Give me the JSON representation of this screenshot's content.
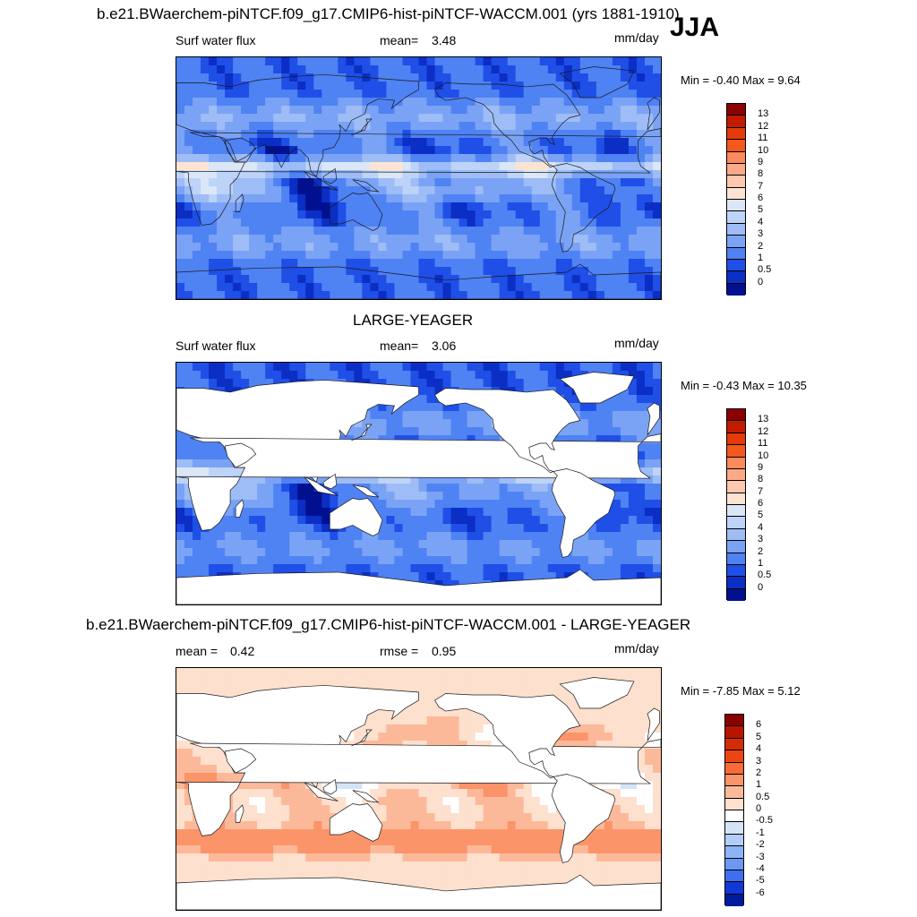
{
  "season": "JJA",
  "panels": [
    {
      "title": "b.e21.BWaerchem-piNTCF.f09_g17.CMIP6-hist-piNTCF-WACCM.001 (yrs 1881-1910)",
      "left_label": "Surf water flux",
      "stat_label": "mean=",
      "stat_value": "3.48",
      "units": "mm/day",
      "minmax": "Min =  -0.40 Max =   9.64",
      "field": "model",
      "colorbar": {
        "labels": [
          "13",
          "12",
          "11",
          "10",
          "9",
          "8",
          "7",
          "6",
          "5",
          "4",
          "3",
          "2",
          "1",
          "0.5",
          "0"
        ],
        "colors": [
          "#8b0000",
          "#c41b00",
          "#e33b0a",
          "#f5581c",
          "#fb8a5c",
          "#fca986",
          "#fdc8ad",
          "#fde4d2",
          "#dbe7f7",
          "#bdd3f7",
          "#9ebcf6",
          "#7ba3f5",
          "#4f82f3",
          "#1f4fe6",
          "#0b2ec4",
          "#00108f"
        ]
      }
    },
    {
      "title": "LARGE-YEAGER",
      "left_label": "Surf water flux",
      "stat_label": "mean=",
      "stat_value": "3.06",
      "units": "mm/day",
      "minmax": "Min =  -0.43 Max =  10.35",
      "field": "obs",
      "colorbar": {
        "labels": [
          "13",
          "12",
          "11",
          "10",
          "9",
          "8",
          "7",
          "6",
          "5",
          "4",
          "3",
          "2",
          "1",
          "0.5",
          "0"
        ],
        "colors": [
          "#8b0000",
          "#c41b00",
          "#e33b0a",
          "#f5581c",
          "#fb8a5c",
          "#fca986",
          "#fdc8ad",
          "#fde4d2",
          "#dbe7f7",
          "#bdd3f7",
          "#9ebcf6",
          "#7ba3f5",
          "#4f82f3",
          "#1f4fe6",
          "#0b2ec4",
          "#00108f"
        ]
      }
    },
    {
      "title": "b.e21.BWaerchem-piNTCF.f09_g17.CMIP6-hist-piNTCF-WACCM.001 - LARGE-YEAGER",
      "left_label": "mean =",
      "left_value": "0.42",
      "stat_label": "rmse =",
      "stat_value": "0.95",
      "units": "mm/day",
      "minmax": "Min =  -7.85 Max =   5.12",
      "field": "diff",
      "colorbar": {
        "labels": [
          "6",
          "5",
          "4",
          "3",
          "2",
          "1",
          "0.5",
          "0",
          "-0.5",
          "-1",
          "-2",
          "-3",
          "-4",
          "-5",
          "-6"
        ],
        "colors": [
          "#8b0000",
          "#b81500",
          "#d62c06",
          "#ec4514",
          "#f86a38",
          "#fb9469",
          "#fcb99a",
          "#fde0cd",
          "#ffffff",
          "#d5e3f7",
          "#b2cdf6",
          "#8eb4f5",
          "#6a98f3",
          "#3f6fee",
          "#1238d6",
          "#001a9c"
        ]
      }
    }
  ]
}
